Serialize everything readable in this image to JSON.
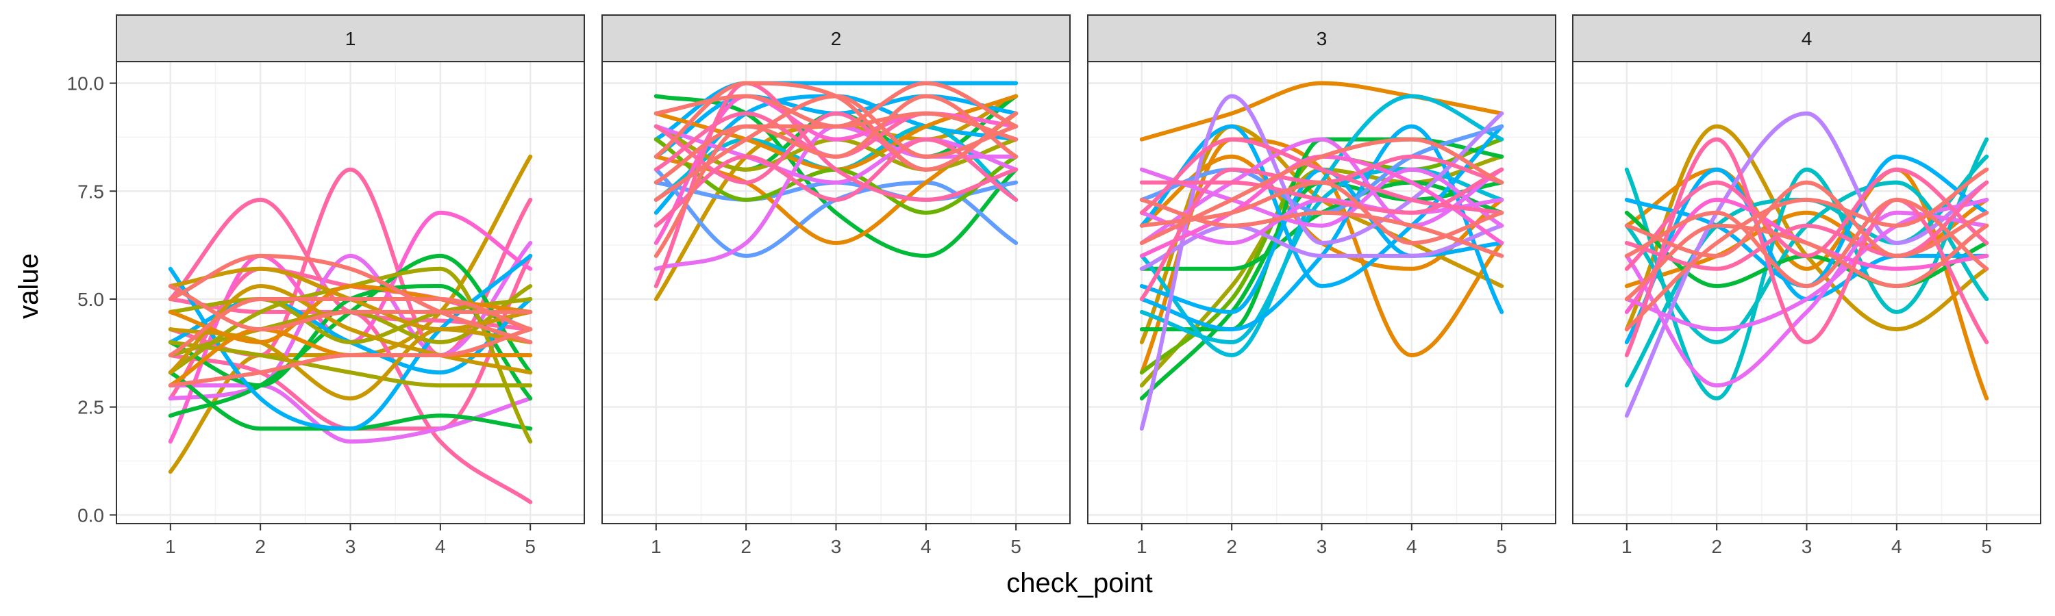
{
  "chart_data": {
    "type": "line",
    "subtype": "faceted smoothed line chart, one line per subject per panel",
    "xlabel": "check_point",
    "ylabel": "value",
    "x_ticks": [
      "1",
      "2",
      "3",
      "4",
      "5"
    ],
    "y_ticks": [
      "0.0",
      "2.5",
      "5.0",
      "7.5",
      "10.0"
    ],
    "xlim": [
      0.4,
      5.6
    ],
    "ylim": [
      -0.2,
      10.5
    ],
    "grid": true,
    "legend": "none",
    "palette": [
      "#F8766D",
      "#E58700",
      "#C99800",
      "#A3A500",
      "#6BB100",
      "#00BA38",
      "#00BF7D",
      "#00C0AF",
      "#00BCD8",
      "#00B0F6",
      "#619CFF",
      "#B983FF",
      "#E76BF3",
      "#FD61D1",
      "#FF67A4"
    ],
    "panels": [
      {
        "label": "1",
        "series": [
          {
            "color": "#C99800",
            "values": [
              1.0,
              3.7,
              3.7,
              4.7,
              8.3
            ]
          },
          {
            "color": "#FF67A4",
            "values": [
              5.0,
              7.3,
              4.7,
              4.5,
              4.3
            ]
          },
          {
            "color": "#FF67A4",
            "values": [
              4.3,
              3.7,
              8.0,
              3.7,
              7.3
            ]
          },
          {
            "color": "#FF67A4",
            "values": [
              3.7,
              3.3,
              2.0,
              2.0,
              6.0
            ]
          },
          {
            "color": "#FF67A4",
            "values": [
              5.0,
              4.7,
              4.7,
              1.7,
              0.3
            ]
          },
          {
            "color": "#FF67A4",
            "values": [
              2.7,
              5.7,
              5.3,
              5.0,
              4.3
            ]
          },
          {
            "color": "#E76BF3",
            "values": [
              2.7,
              3.0,
              6.0,
              3.7,
              6.3
            ]
          },
          {
            "color": "#E76BF3",
            "values": [
              3.0,
              3.0,
              1.7,
              2.0,
              2.7
            ]
          },
          {
            "color": "#FD61D1",
            "values": [
              1.7,
              6.0,
              4.0,
              7.0,
              5.7
            ]
          },
          {
            "color": "#00BA38",
            "values": [
              2.3,
              3.0,
              4.7,
              6.0,
              3.3
            ]
          },
          {
            "color": "#00BA38",
            "values": [
              3.3,
              2.0,
              2.0,
              2.3,
              2.0
            ]
          },
          {
            "color": "#00BA38",
            "values": [
              4.0,
              3.0,
              5.0,
              5.3,
              2.7
            ]
          },
          {
            "color": "#00B0F6",
            "values": [
              5.7,
              2.7,
              2.0,
              4.3,
              6.0
            ]
          },
          {
            "color": "#00B0F6",
            "values": [
              4.0,
              5.0,
              4.0,
              3.3,
              5.0
            ]
          },
          {
            "color": "#A3A500",
            "values": [
              3.3,
              4.7,
              5.3,
              5.7,
              1.7
            ]
          },
          {
            "color": "#A3A500",
            "values": [
              4.0,
              3.7,
              3.3,
              3.0,
              3.0
            ]
          },
          {
            "color": "#A3A500",
            "values": [
              4.7,
              5.0,
              4.0,
              4.7,
              5.0
            ]
          },
          {
            "color": "#A3A500",
            "values": [
              3.7,
              4.3,
              4.7,
              4.0,
              5.3
            ]
          },
          {
            "color": "#C99800",
            "values": [
              3.3,
              5.3,
              4.3,
              3.7,
              3.3
            ]
          },
          {
            "color": "#C99800",
            "values": [
              4.3,
              4.0,
              2.7,
              4.3,
              4.0
            ]
          },
          {
            "color": "#C99800",
            "values": [
              5.3,
              5.7,
              5.0,
              4.3,
              4.7
            ]
          },
          {
            "color": "#E58700",
            "values": [
              3.0,
              4.3,
              3.7,
              3.7,
              3.7
            ]
          },
          {
            "color": "#E58700",
            "values": [
              4.7,
              4.0,
              5.3,
              5.0,
              4.7
            ]
          },
          {
            "color": "#F8766D",
            "values": [
              5.0,
              6.0,
              5.7,
              4.7,
              4.0
            ]
          },
          {
            "color": "#F8766D",
            "values": [
              3.7,
              5.0,
              5.0,
              5.0,
              4.3
            ]
          },
          {
            "color": "#F8766D",
            "values": [
              5.3,
              4.3,
              4.7,
              4.7,
              4.7
            ]
          },
          {
            "color": "#F8766D",
            "values": [
              3.0,
              3.3,
              3.7,
              3.7,
              4.3
            ]
          }
        ]
      },
      {
        "label": "2",
        "series": [
          {
            "color": "#C99800",
            "values": [
              5.0,
              8.3,
              9.0,
              8.7,
              9.7
            ]
          },
          {
            "color": "#00BA38",
            "values": [
              9.7,
              9.3,
              7.0,
              6.0,
              8.0
            ]
          },
          {
            "color": "#00BA38",
            "values": [
              9.0,
              8.0,
              9.3,
              8.3,
              9.7
            ]
          },
          {
            "color": "#00B0F6",
            "values": [
              8.7,
              10.0,
              10.0,
              10.0,
              10.0
            ]
          },
          {
            "color": "#00B0F6",
            "values": [
              7.0,
              9.3,
              9.7,
              9.0,
              8.7
            ]
          },
          {
            "color": "#00B0F6",
            "values": [
              8.3,
              9.7,
              9.3,
              9.7,
              9.3
            ]
          },
          {
            "color": "#00BCD8",
            "values": [
              7.3,
              8.7,
              8.0,
              9.0,
              7.3
            ]
          },
          {
            "color": "#619CFF",
            "values": [
              8.0,
              6.0,
              7.3,
              7.7,
              6.3
            ]
          },
          {
            "color": "#619CFF",
            "values": [
              7.7,
              7.3,
              7.7,
              7.3,
              7.7
            ]
          },
          {
            "color": "#E58700",
            "values": [
              8.3,
              7.7,
              6.3,
              7.7,
              9.3
            ]
          },
          {
            "color": "#E58700",
            "values": [
              9.3,
              8.7,
              8.0,
              9.0,
              9.7
            ]
          },
          {
            "color": "#A3A500",
            "values": [
              9.0,
              8.0,
              8.7,
              8.0,
              8.7
            ]
          },
          {
            "color": "#6BB100",
            "values": [
              8.7,
              7.3,
              8.0,
              7.0,
              8.3
            ]
          },
          {
            "color": "#E76BF3",
            "values": [
              5.7,
              6.3,
              9.0,
              8.3,
              8.3
            ]
          },
          {
            "color": "#E76BF3",
            "values": [
              9.0,
              8.3,
              7.7,
              8.7,
              8.0
            ]
          },
          {
            "color": "#FD61D1",
            "values": [
              6.3,
              9.7,
              8.7,
              9.3,
              9.0
            ]
          },
          {
            "color": "#FF67A4",
            "values": [
              5.3,
              10.0,
              8.0,
              7.3,
              8.0
            ]
          },
          {
            "color": "#FF67A4",
            "values": [
              9.0,
              7.7,
              9.3,
              8.0,
              9.3
            ]
          },
          {
            "color": "#FF67A4",
            "values": [
              6.7,
              8.3,
              7.3,
              8.7,
              7.3
            ]
          },
          {
            "color": "#FF67A4",
            "values": [
              8.0,
              9.3,
              8.3,
              9.3,
              8.7
            ]
          },
          {
            "color": "#F8766D",
            "values": [
              7.3,
              8.7,
              9.7,
              8.3,
              9.0
            ]
          },
          {
            "color": "#F8766D",
            "values": [
              9.3,
              9.7,
              9.0,
              10.0,
              9.0
            ]
          },
          {
            "color": "#F8766D",
            "values": [
              7.7,
              9.0,
              8.3,
              9.7,
              8.3
            ]
          },
          {
            "color": "#F8766D",
            "values": [
              8.3,
              10.0,
              9.7,
              8.0,
              9.3
            ]
          },
          {
            "color": "#F8766D",
            "values": [
              6.0,
              9.0,
              9.0,
              9.3,
              8.7
            ]
          }
        ]
      },
      {
        "label": "3",
        "series": [
          {
            "color": "#E58700",
            "values": [
              8.7,
              9.3,
              10.0,
              9.7,
              9.3
            ]
          },
          {
            "color": "#E58700",
            "values": [
              3.3,
              8.7,
              8.0,
              3.7,
              6.3
            ]
          },
          {
            "color": "#E58700",
            "values": [
              6.7,
              8.3,
              6.3,
              5.7,
              7.3
            ]
          },
          {
            "color": "#C99800",
            "values": [
              4.0,
              9.0,
              7.3,
              6.3,
              5.3
            ]
          },
          {
            "color": "#A3A500",
            "values": [
              3.0,
              5.3,
              8.0,
              7.7,
              8.3
            ]
          },
          {
            "color": "#6BB100",
            "values": [
              3.3,
              5.0,
              8.3,
              8.0,
              8.7
            ]
          },
          {
            "color": "#00BA38",
            "values": [
              2.7,
              4.7,
              7.7,
              7.3,
              7.7
            ]
          },
          {
            "color": "#00BA38",
            "values": [
              5.7,
              5.7,
              7.0,
              7.7,
              7.0
            ]
          },
          {
            "color": "#00BA38",
            "values": [
              4.3,
              4.3,
              8.7,
              8.7,
              8.3
            ]
          },
          {
            "color": "#00BCD8",
            "values": [
              6.0,
              3.7,
              7.7,
              9.7,
              8.7
            ]
          },
          {
            "color": "#00BCD8",
            "values": [
              4.7,
              4.0,
              7.3,
              8.0,
              7.3
            ]
          },
          {
            "color": "#00B0F6",
            "values": [
              5.0,
              4.3,
              6.0,
              9.0,
              4.7
            ]
          },
          {
            "color": "#00B0F6",
            "values": [
              6.7,
              9.0,
              5.3,
              6.7,
              9.0
            ]
          },
          {
            "color": "#00B0F6",
            "values": [
              5.3,
              4.7,
              8.0,
              6.0,
              6.3
            ]
          },
          {
            "color": "#619CFF",
            "values": [
              7.3,
              8.0,
              7.0,
              8.3,
              9.0
            ]
          },
          {
            "color": "#B983FF",
            "values": [
              2.0,
              9.7,
              6.3,
              7.3,
              9.3
            ]
          },
          {
            "color": "#B983FF",
            "values": [
              5.7,
              6.7,
              6.0,
              6.0,
              6.7
            ]
          },
          {
            "color": "#E76BF3",
            "values": [
              6.3,
              7.7,
              8.7,
              6.7,
              8.0
            ]
          },
          {
            "color": "#E76BF3",
            "values": [
              7.0,
              6.3,
              7.3,
              7.0,
              7.3
            ]
          },
          {
            "color": "#E76BF3",
            "values": [
              8.0,
              7.3,
              6.7,
              8.0,
              6.7
            ]
          },
          {
            "color": "#FD61D1",
            "values": [
              6.0,
              7.0,
              8.3,
              7.7,
              6.3
            ]
          },
          {
            "color": "#FF67A4",
            "values": [
              7.7,
              7.7,
              7.3,
              7.0,
              8.0
            ]
          },
          {
            "color": "#FF67A4",
            "values": [
              5.0,
              8.0,
              7.7,
              8.3,
              7.7
            ]
          },
          {
            "color": "#FF67A4",
            "values": [
              7.0,
              8.7,
              8.0,
              7.3,
              7.0
            ]
          },
          {
            "color": "#F8766D",
            "values": [
              6.3,
              7.3,
              8.3,
              8.7,
              7.7
            ]
          },
          {
            "color": "#F8766D",
            "values": [
              7.3,
              6.7,
              7.0,
              6.7,
              6.0
            ]
          },
          {
            "color": "#F8766D",
            "values": [
              6.7,
              7.0,
              7.7,
              6.3,
              7.0
            ]
          }
        ]
      },
      {
        "label": "4",
        "series": [
          {
            "color": "#C99800",
            "values": [
              4.3,
              9.0,
              6.0,
              4.3,
              5.7
            ]
          },
          {
            "color": "#E58700",
            "values": [
              6.7,
              8.0,
              5.7,
              8.0,
              2.7
            ]
          },
          {
            "color": "#E58700",
            "values": [
              5.3,
              6.0,
              7.0,
              6.0,
              7.3
            ]
          },
          {
            "color": "#00BFC4",
            "values": [
              8.0,
              2.7,
              8.0,
              4.7,
              8.7
            ]
          },
          {
            "color": "#00BFC4",
            "values": [
              3.0,
              6.7,
              7.3,
              6.3,
              8.3
            ]
          },
          {
            "color": "#00BFC4",
            "values": [
              6.7,
              4.0,
              6.7,
              7.7,
              5.0
            ]
          },
          {
            "color": "#00BA38",
            "values": [
              7.0,
              5.3,
              6.0,
              5.3,
              6.3
            ]
          },
          {
            "color": "#00B0F6",
            "values": [
              7.3,
              6.7,
              5.3,
              8.3,
              7.0
            ]
          },
          {
            "color": "#00B0F6",
            "values": [
              4.0,
              8.0,
              5.0,
              6.0,
              6.0
            ]
          },
          {
            "color": "#B983FF",
            "values": [
              2.3,
              7.0,
              9.3,
              6.3,
              7.7
            ]
          },
          {
            "color": "#E76BF3",
            "values": [
              5.0,
              4.3,
              5.0,
              6.7,
              7.3
            ]
          },
          {
            "color": "#E76BF3",
            "values": [
              6.0,
              3.0,
              4.7,
              7.0,
              6.7
            ]
          },
          {
            "color": "#FD61D1",
            "values": [
              4.7,
              7.3,
              6.3,
              5.7,
              6.0
            ]
          },
          {
            "color": "#FF67A4",
            "values": [
              3.7,
              8.7,
              4.0,
              7.3,
              4.0
            ]
          },
          {
            "color": "#FF67A4",
            "values": [
              6.3,
              5.7,
              6.7,
              6.0,
              7.7
            ]
          },
          {
            "color": "#FF67A4",
            "values": [
              5.7,
              7.7,
              6.0,
              8.0,
              6.3
            ]
          },
          {
            "color": "#F8766D",
            "values": [
              4.3,
              6.3,
              7.3,
              6.7,
              8.0
            ]
          },
          {
            "color": "#F8766D",
            "values": [
              6.0,
              7.0,
              5.3,
              7.3,
              5.7
            ]
          },
          {
            "color": "#F8766D",
            "values": [
              5.0,
              6.7,
              6.3,
              5.3,
              6.7
            ]
          },
          {
            "color": "#F8766D",
            "values": [
              6.7,
              6.0,
              7.7,
              6.0,
              7.0
            ]
          }
        ]
      }
    ]
  }
}
